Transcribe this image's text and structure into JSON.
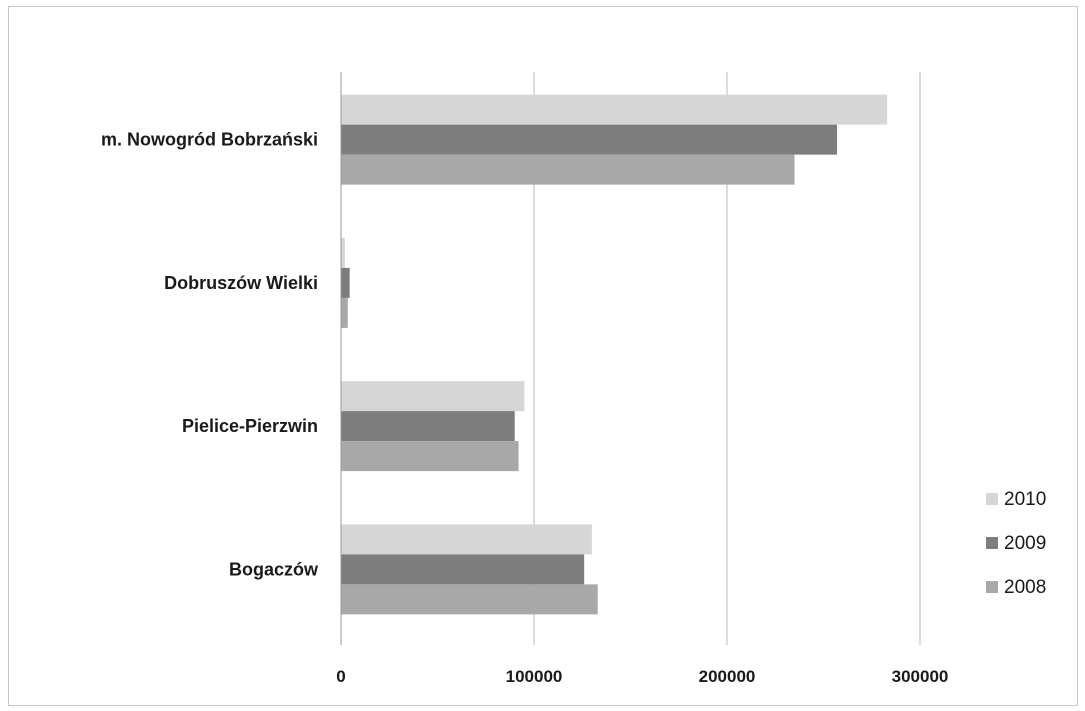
{
  "chart_data": {
    "type": "bar",
    "orientation": "horizontal",
    "categories": [
      "m. Nowogród Bobrzański",
      "Dobruszów Wielki",
      "Pielice-Pierzwin",
      "Bogaczów"
    ],
    "series": [
      {
        "name": "2010",
        "values": [
          283000,
          2000,
          95000,
          130000
        ],
        "color": "#d6d6d6"
      },
      {
        "name": "2009",
        "values": [
          257000,
          4500,
          90000,
          126000
        ],
        "color": "#7d7d7d"
      },
      {
        "name": "2008",
        "values": [
          235000,
          3500,
          92000,
          133000
        ],
        "color": "#a8a8a8"
      }
    ],
    "xlim": [
      0,
      300000
    ],
    "xticks": [
      "0",
      "100000",
      "200000",
      "300000"
    ],
    "grid": true,
    "legend_position": "right",
    "legend_order": [
      "2010",
      "2009",
      "2008"
    ]
  }
}
